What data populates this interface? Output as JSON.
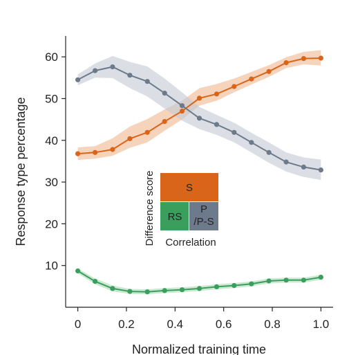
{
  "chart_data": {
    "type": "line",
    "xlabel": "Normalized training time",
    "ylabel": "Response type percentage",
    "xlim": [
      -0.05,
      1.05
    ],
    "ylim": [
      0,
      65
    ],
    "xticks": [
      "0",
      "0.2",
      "0.4",
      "0.6",
      "0.8",
      "1.0"
    ],
    "yticks": [
      "10",
      "20",
      "30",
      "40",
      "50",
      "60"
    ],
    "grid": false,
    "x": [
      0,
      0.071,
      0.143,
      0.214,
      0.286,
      0.357,
      0.429,
      0.5,
      0.571,
      0.643,
      0.714,
      0.786,
      0.857,
      0.929,
      1.0
    ],
    "series": [
      {
        "key": "S",
        "color": "#d9651a",
        "band_color": "#f0b58e",
        "values": [
          36.8,
          37.1,
          37.8,
          40.4,
          41.9,
          44.5,
          47.0,
          50.1,
          51.1,
          52.9,
          54.7,
          56.5,
          58.6,
          59.6,
          59.7
        ],
        "lower": [
          35.3,
          35.6,
          36.3,
          38.2,
          39.5,
          42.3,
          45.0,
          48.3,
          49.5,
          51.5,
          53.4,
          55.2,
          57.3,
          58.2,
          57.9
        ],
        "upper": [
          38.3,
          38.6,
          40.5,
          43.3,
          45.1,
          47.4,
          49.5,
          52.5,
          53.5,
          54.8,
          56.4,
          58.0,
          59.9,
          61.2,
          61.6
        ]
      },
      {
        "key": "P/P-S",
        "color": "#6c7a8b",
        "band_color": "#c3cad3",
        "values": [
          54.5,
          56.7,
          57.6,
          55.6,
          54.1,
          51.3,
          48.3,
          45.3,
          43.8,
          41.9,
          39.5,
          37.1,
          34.8,
          33.6,
          32.9
        ],
        "lower": [
          53.2,
          55.0,
          54.9,
          52.5,
          50.5,
          47.6,
          44.7,
          42.7,
          41.3,
          39.5,
          37.1,
          34.6,
          32.5,
          31.2,
          30.5
        ],
        "upper": [
          55.8,
          58.4,
          60.2,
          58.8,
          57.7,
          54.8,
          51.5,
          48.0,
          46.1,
          44.2,
          41.8,
          39.5,
          37.1,
          35.9,
          35.4
        ]
      },
      {
        "key": "RS",
        "color": "#3a9e5c",
        "band_color": "#a6d9b4",
        "values": [
          8.7,
          6.2,
          4.5,
          3.8,
          3.7,
          4.0,
          4.2,
          4.5,
          4.9,
          5.2,
          5.6,
          6.3,
          6.5,
          6.5,
          7.2
        ],
        "lower": [
          8.1,
          5.5,
          3.8,
          3.2,
          3.1,
          3.4,
          3.6,
          3.9,
          4.3,
          4.6,
          5.0,
          5.7,
          5.9,
          5.9,
          6.6
        ],
        "upper": [
          9.3,
          6.9,
          5.2,
          4.4,
          4.3,
          4.6,
          4.8,
          5.1,
          5.5,
          5.8,
          6.2,
          6.9,
          7.1,
          7.1,
          7.8
        ]
      }
    ],
    "legend_inset": {
      "placement": "center",
      "y_title": "Difference score",
      "x_title": "Correlation",
      "cells": {
        "top": {
          "label": "S",
          "color": "#d9651a"
        },
        "bottom_left": {
          "label": "RS",
          "color": "#3a9e5c"
        },
        "bottom_right": {
          "label_line1": "P",
          "label_line2": "/P-S",
          "color": "#6c7a8b"
        }
      }
    }
  }
}
